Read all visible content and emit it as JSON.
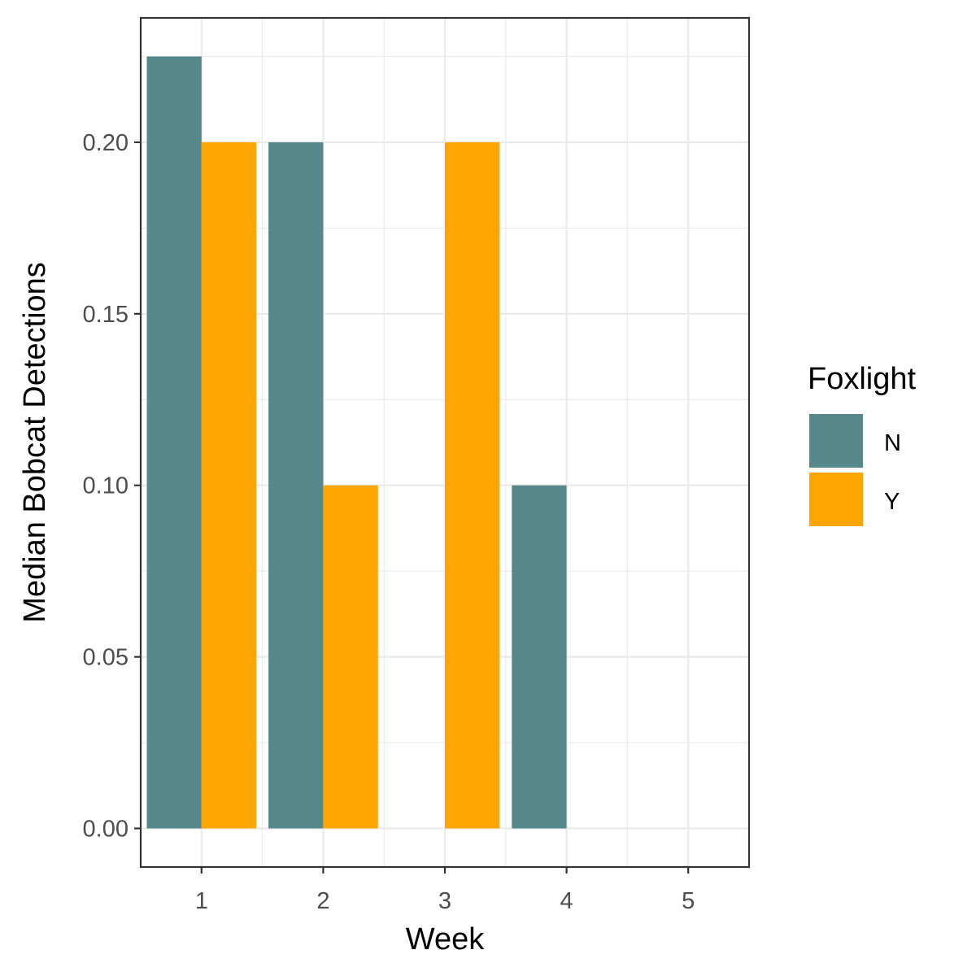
{
  "chart_data": {
    "type": "bar",
    "xlabel": "Week",
    "ylabel": "Median Bobcat Detections",
    "categories": [
      "1",
      "2",
      "3",
      "4",
      "5"
    ],
    "x": [
      1,
      2,
      3,
      4,
      5
    ],
    "xlim": [
      0.5,
      5.5
    ],
    "ylim": [
      -0.01125,
      0.23625
    ],
    "yticks": [
      0.0,
      0.05,
      0.1,
      0.15,
      0.2
    ],
    "ytick_labels": [
      "0.00",
      "0.05",
      "0.10",
      "0.15",
      "0.20"
    ],
    "legend": {
      "title": "Foxlight",
      "placement": "right"
    },
    "grid": true,
    "series": [
      {
        "name": "N",
        "color": "#56888B",
        "values": [
          0.225,
          0.2,
          0,
          0.1,
          0
        ]
      },
      {
        "name": "Y",
        "color": "#FFA500",
        "values": [
          0.2,
          0.1,
          0.2,
          0,
          0
        ]
      }
    ]
  }
}
